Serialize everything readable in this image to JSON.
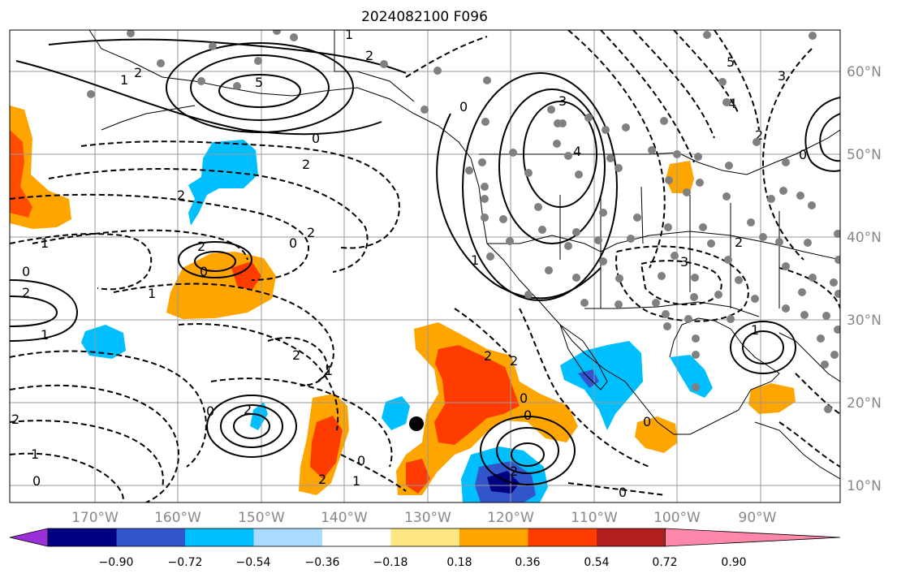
{
  "title": "2024082100 F096",
  "lon_labels": [
    "170°W",
    "160°W",
    "150°W",
    "140°W",
    "130°W",
    "120°W",
    "110°W",
    "100°W",
    "90°W"
  ],
  "lat_labels": [
    "60°N",
    "50°N",
    "40°N",
    "30°N",
    "20°N",
    "10°N"
  ],
  "colorbar": {
    "tick_labels": [
      "−0.90",
      "−0.72",
      "−0.54",
      "−0.36",
      "−0.18",
      "0.18",
      "0.36",
      "0.54",
      "0.72",
      "0.90"
    ],
    "colors": [
      "#9b30d8",
      "#000080",
      "#3355cc",
      "#00bfff",
      "#aadcff",
      "#ffffff",
      "#ffe680",
      "#ffa500",
      "#ff3c00",
      "#b21e1e",
      "#ff88aa"
    ]
  },
  "contour_labels": [
    "1",
    "2",
    "5",
    "2",
    "0",
    "2",
    "1",
    "0",
    "3",
    "4",
    "1",
    "2",
    "0",
    "1",
    "2",
    "0",
    "2",
    "0",
    "2",
    "2",
    "1",
    "0",
    "0",
    "1",
    "0",
    "2",
    "2",
    "3",
    "1",
    "2",
    "4",
    "5",
    "3",
    "2",
    "0",
    "1",
    "2",
    "0",
    "1",
    "1",
    "0",
    "0",
    "2",
    "2",
    "0",
    "2"
  ],
  "station_dots_note": ""
}
